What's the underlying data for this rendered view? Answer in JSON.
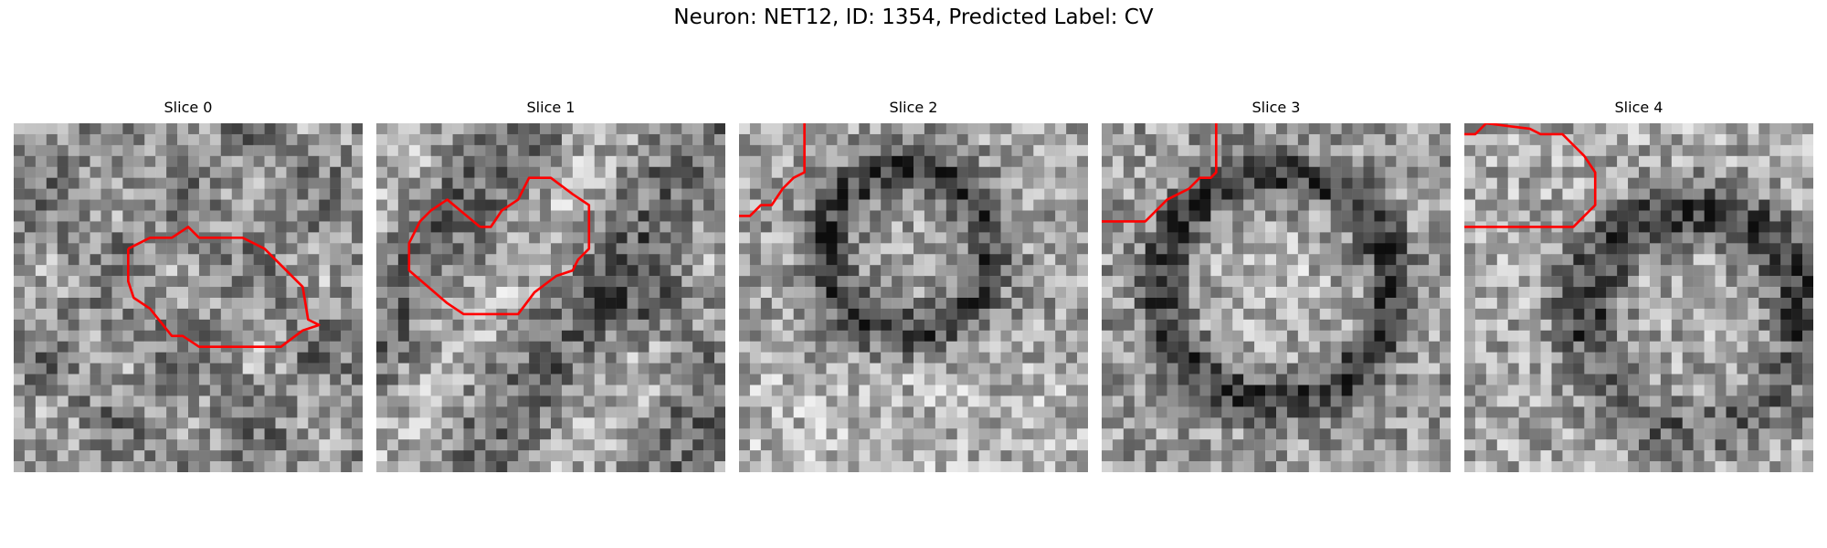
{
  "figure": {
    "title": "Neuron: NET12, ID: 1354, Predicted Label: CV"
  },
  "panels": [
    {
      "title": "Slice 0",
      "contour_color": "#ff0000"
    },
    {
      "title": "Slice 1",
      "contour_color": "#ff0000"
    },
    {
      "title": "Slice 2",
      "contour_color": "#ff0000"
    },
    {
      "title": "Slice 3",
      "contour_color": "#ff0000"
    },
    {
      "title": "Slice 4",
      "contour_color": "#ff0000"
    }
  ]
}
